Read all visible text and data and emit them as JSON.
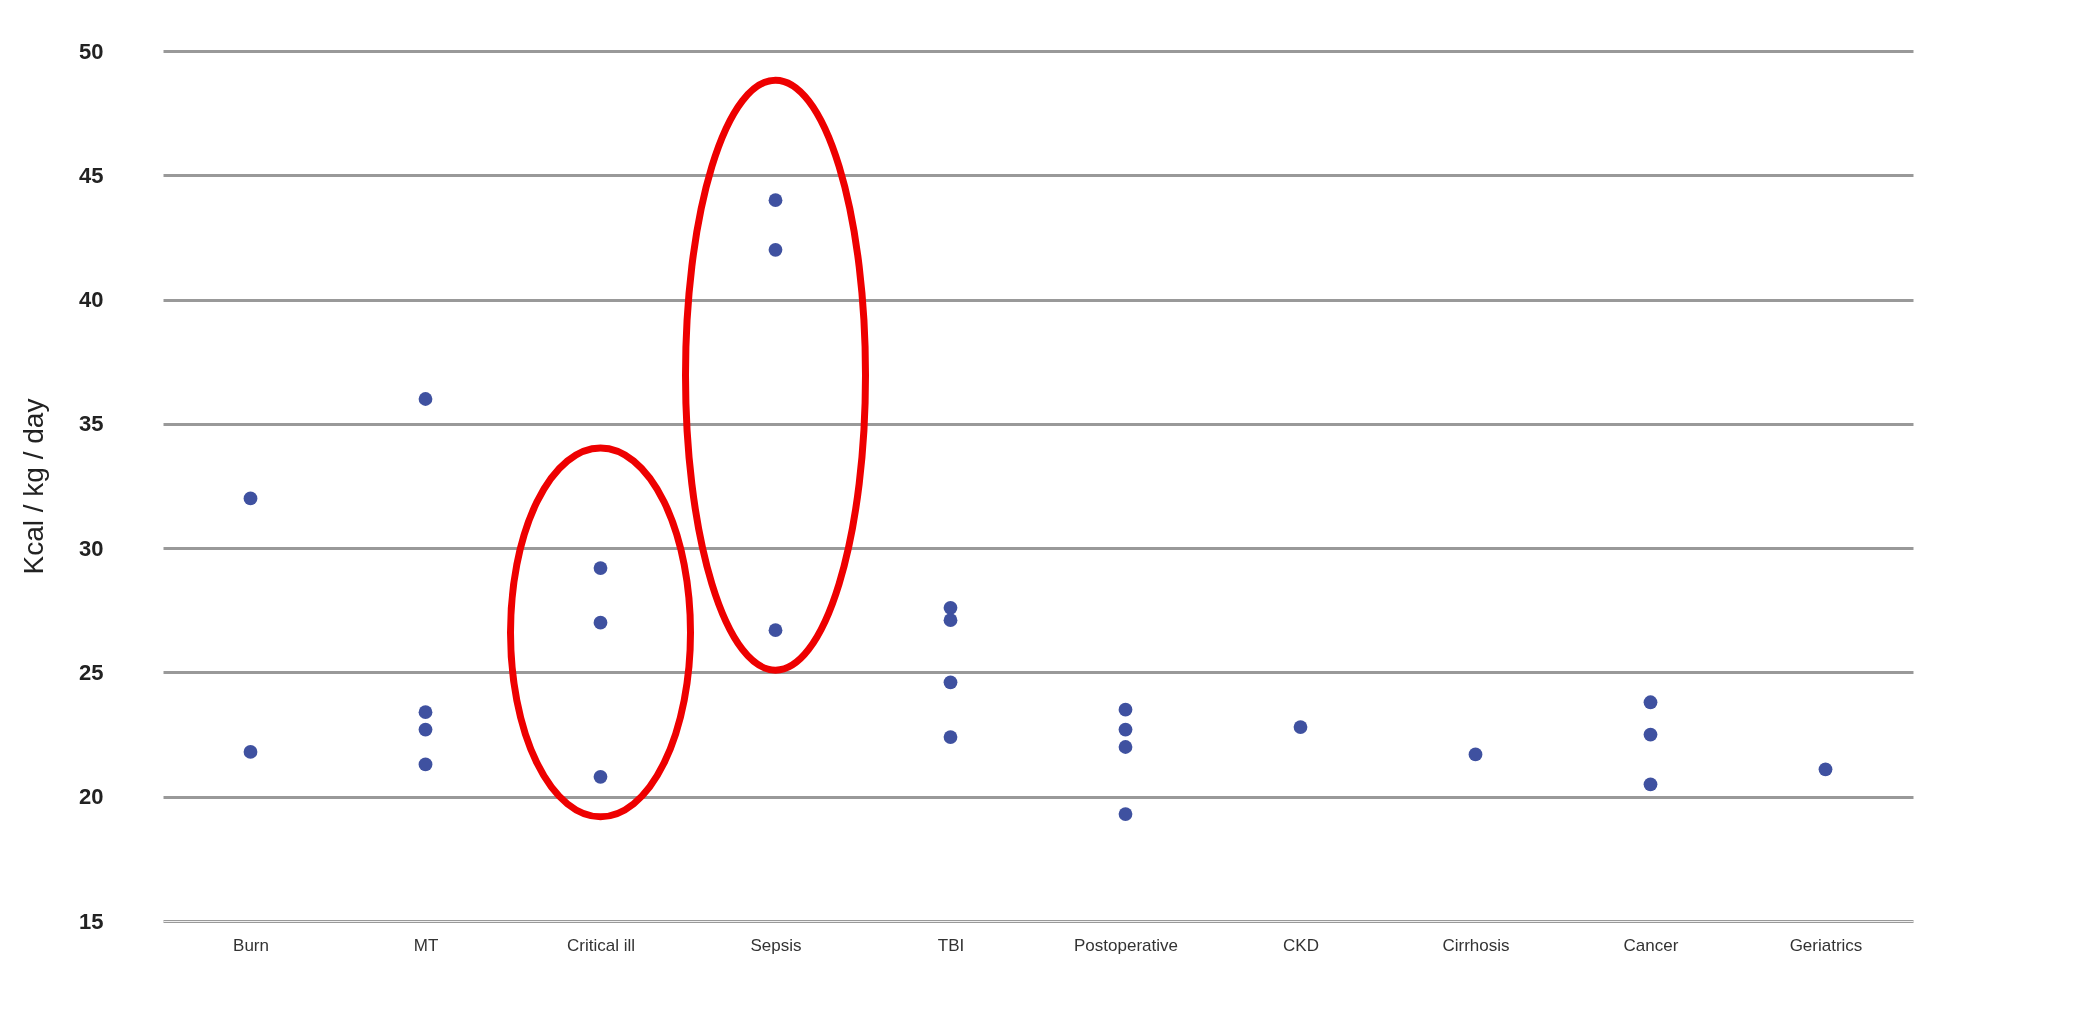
{
  "chart_data": {
    "type": "scatter",
    "ylabel": "Kcal / kg / day",
    "categories": [
      "Burn",
      "MT",
      "Critical ill",
      "Sepsis",
      "TBI",
      "Postoperative",
      "CKD",
      "Cirrhosis",
      "Cancer",
      "Geriatrics"
    ],
    "series": [
      {
        "color": "#3f51a0",
        "x": [
          "Burn",
          "Burn",
          "MT",
          "MT",
          "MT",
          "MT",
          "Critical ill",
          "Critical ill",
          "Critical ill",
          "Sepsis",
          "Sepsis",
          "Sepsis",
          "TBI",
          "TBI",
          "TBI",
          "TBI",
          "Postoperative",
          "Postoperative",
          "Postoperative",
          "Postoperative",
          "CKD",
          "Cirrhosis",
          "Cancer",
          "Cancer",
          "Cancer",
          "Geriatrics"
        ],
        "values": [
          32,
          21.8,
          36,
          23.4,
          22.7,
          21.3,
          29.2,
          27,
          20.8,
          44,
          42,
          26.7,
          27.6,
          27.1,
          24.6,
          22.4,
          23.5,
          22.7,
          22,
          19.3,
          22.8,
          21.7,
          23.8,
          22.5,
          20.5,
          21.1
        ]
      }
    ],
    "ylim": [
      15,
      50
    ],
    "yticks": [
      15,
      20,
      25,
      30,
      35,
      40,
      45,
      50
    ],
    "grid": "y",
    "legend": false
  }
}
